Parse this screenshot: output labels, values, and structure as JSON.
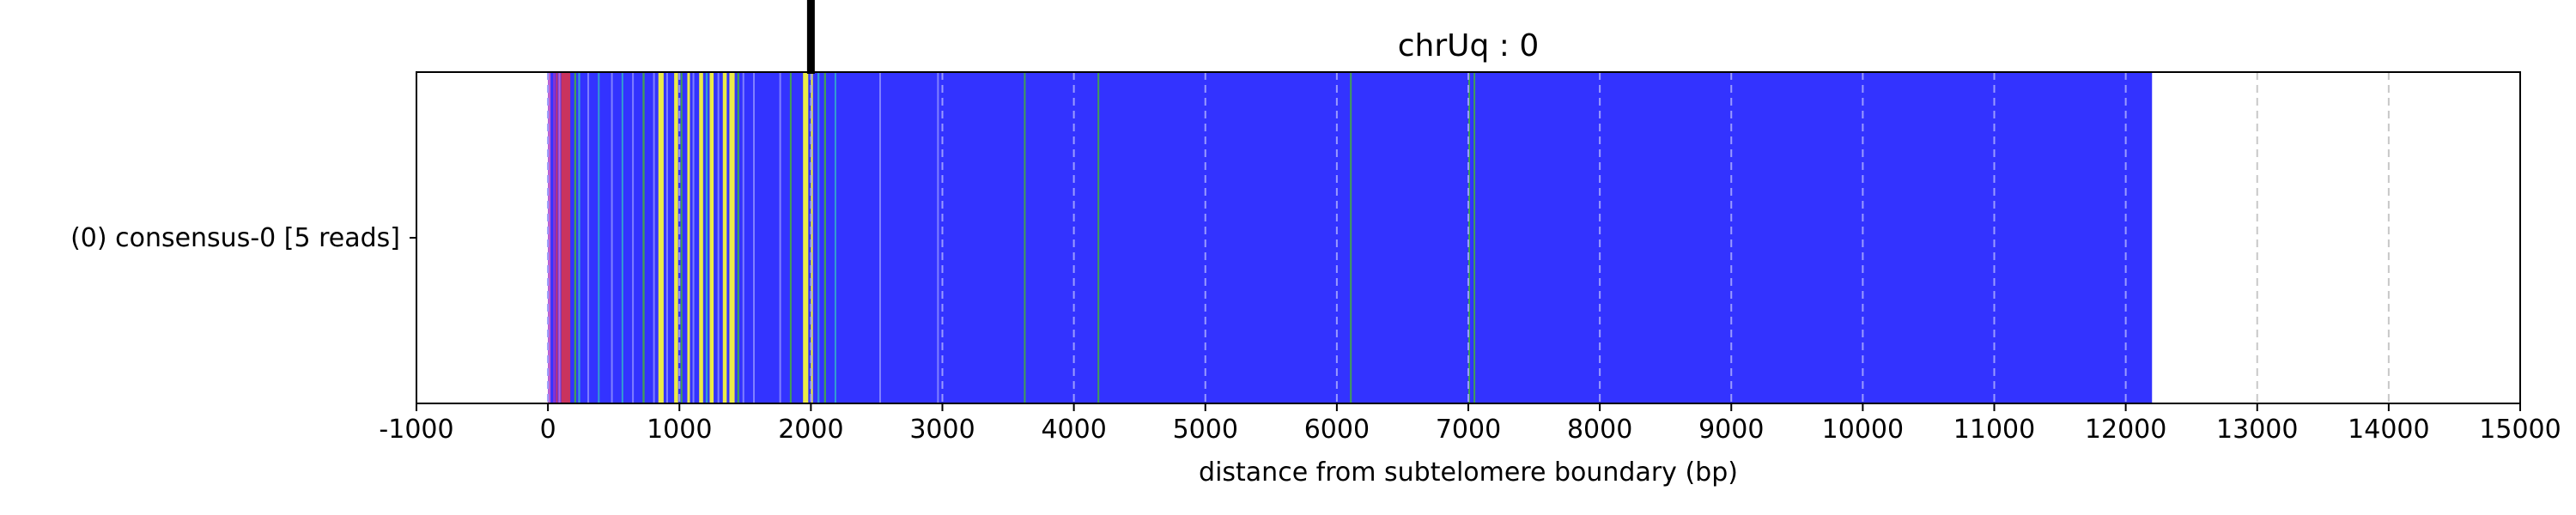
{
  "chart_data": {
    "type": "bar",
    "orientation": "horizontal",
    "title": "chrUq : 0",
    "xlabel": "distance from subtelomere boundary (bp)",
    "ylabel": "",
    "xlim": [
      -1000,
      15000
    ],
    "xticks": [
      -1000,
      0,
      1000,
      2000,
      3000,
      4000,
      5000,
      6000,
      7000,
      8000,
      9000,
      10000,
      11000,
      12000,
      13000,
      14000,
      15000
    ],
    "xtick_labels": [
      "-1000",
      "0",
      "1000",
      "2000",
      "3000",
      "4000",
      "5000",
      "6000",
      "7000",
      "8000",
      "9000",
      "10000",
      "11000",
      "12000",
      "13000",
      "14000",
      "15000"
    ],
    "grid": "vertical dashed lines at x ticks",
    "categories": [
      "(0) consensus-0 [5 reads]"
    ],
    "boundary_marker_x": 2000,
    "read_extent": [
      0,
      12200
    ],
    "base_color": "#3333ff",
    "segments": [
      {
        "start": 0,
        "end": 20,
        "color": "#cc66cc"
      },
      {
        "start": 40,
        "end": 55,
        "color": "#9933cc"
      },
      {
        "start": 60,
        "end": 75,
        "color": "#cc3366"
      },
      {
        "start": 80,
        "end": 95,
        "color": "#cc66cc"
      },
      {
        "start": 100,
        "end": 170,
        "color": "#d9334d"
      },
      {
        "start": 200,
        "end": 215,
        "color": "#44aa44"
      },
      {
        "start": 230,
        "end": 245,
        "color": "#33aacc"
      },
      {
        "start": 300,
        "end": 312,
        "color": "#8888ff"
      },
      {
        "start": 380,
        "end": 392,
        "color": "#33aacc"
      },
      {
        "start": 480,
        "end": 492,
        "color": "#8888ff"
      },
      {
        "start": 560,
        "end": 572,
        "color": "#33aacc"
      },
      {
        "start": 640,
        "end": 652,
        "color": "#8888ff"
      },
      {
        "start": 720,
        "end": 735,
        "color": "#44aa44"
      },
      {
        "start": 800,
        "end": 812,
        "color": "#8888ff"
      },
      {
        "start": 840,
        "end": 880,
        "color": "#ffff33"
      },
      {
        "start": 900,
        "end": 912,
        "color": "#8888ff"
      },
      {
        "start": 960,
        "end": 990,
        "color": "#ffff33"
      },
      {
        "start": 1010,
        "end": 1022,
        "color": "#44aa44"
      },
      {
        "start": 1060,
        "end": 1080,
        "color": "#ffff33"
      },
      {
        "start": 1100,
        "end": 1112,
        "color": "#8888ff"
      },
      {
        "start": 1150,
        "end": 1180,
        "color": "#ffff33"
      },
      {
        "start": 1200,
        "end": 1215,
        "color": "#33aacc"
      },
      {
        "start": 1230,
        "end": 1260,
        "color": "#ffff33"
      },
      {
        "start": 1290,
        "end": 1302,
        "color": "#8888ff"
      },
      {
        "start": 1330,
        "end": 1360,
        "color": "#ffff33"
      },
      {
        "start": 1380,
        "end": 1420,
        "color": "#ffff33"
      },
      {
        "start": 1440,
        "end": 1455,
        "color": "#44aa44"
      },
      {
        "start": 1480,
        "end": 1492,
        "color": "#8888ff"
      },
      {
        "start": 1560,
        "end": 1572,
        "color": "#8888ff"
      },
      {
        "start": 1760,
        "end": 1772,
        "color": "#8888ff"
      },
      {
        "start": 1840,
        "end": 1852,
        "color": "#44aa44"
      },
      {
        "start": 1940,
        "end": 1980,
        "color": "#ffff33"
      },
      {
        "start": 2000,
        "end": 2015,
        "color": "#ffff33"
      },
      {
        "start": 2050,
        "end": 2065,
        "color": "#33aacc"
      },
      {
        "start": 2100,
        "end": 2115,
        "color": "#44aa44"
      },
      {
        "start": 2180,
        "end": 2192,
        "color": "#33aacc"
      },
      {
        "start": 2520,
        "end": 2530,
        "color": "#8888ff"
      },
      {
        "start": 2960,
        "end": 2970,
        "color": "#8888ff"
      },
      {
        "start": 3620,
        "end": 3630,
        "color": "#44aa44"
      },
      {
        "start": 4180,
        "end": 4190,
        "color": "#44aa44"
      },
      {
        "start": 6100,
        "end": 6110,
        "color": "#44aa44"
      },
      {
        "start": 7000,
        "end": 7010,
        "color": "#44aa44"
      },
      {
        "start": 7040,
        "end": 7050,
        "color": "#44aa44"
      }
    ]
  }
}
